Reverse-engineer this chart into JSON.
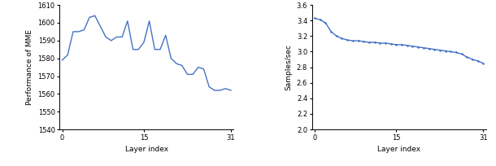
{
  "left": {
    "x": [
      0,
      1,
      2,
      3,
      4,
      5,
      6,
      7,
      8,
      9,
      10,
      11,
      12,
      13,
      14,
      15,
      16,
      17,
      18,
      19,
      20,
      21,
      22,
      23,
      24,
      25,
      26,
      27,
      28,
      29,
      30,
      31
    ],
    "y": [
      1579,
      1582,
      1595,
      1595,
      1596,
      1603,
      1604,
      1598,
      1592,
      1590,
      1592,
      1592,
      1601,
      1585,
      1585,
      1589,
      1601,
      1585,
      1585,
      1593,
      1580,
      1577,
      1576,
      1571,
      1571,
      1575,
      1574,
      1564,
      1562,
      1562,
      1563,
      1562
    ],
    "xlabel": "Layer index",
    "ylabel": "Performance of MME",
    "ylim": [
      1540,
      1610
    ],
    "yticks": [
      1540,
      1550,
      1560,
      1570,
      1580,
      1590,
      1600,
      1610
    ],
    "xticks": [
      0,
      15,
      31
    ],
    "line_color": "#4472c4"
  },
  "right": {
    "x": [
      0,
      1,
      2,
      3,
      4,
      5,
      6,
      7,
      8,
      9,
      10,
      11,
      12,
      13,
      14,
      15,
      16,
      17,
      18,
      19,
      20,
      21,
      22,
      23,
      24,
      25,
      26,
      27,
      28,
      29,
      30,
      31
    ],
    "y": [
      3.43,
      3.41,
      3.37,
      3.26,
      3.2,
      3.17,
      3.15,
      3.14,
      3.14,
      3.13,
      3.12,
      3.12,
      3.11,
      3.11,
      3.1,
      3.09,
      3.09,
      3.08,
      3.07,
      3.06,
      3.05,
      3.04,
      3.03,
      3.02,
      3.01,
      3.0,
      2.99,
      2.97,
      2.93,
      2.9,
      2.88,
      2.85
    ],
    "xlabel": "Layer index",
    "ylabel": "Samples/sec",
    "ylim": [
      2.0,
      3.6
    ],
    "yticks": [
      2.0,
      2.2,
      2.4,
      2.6,
      2.8,
      3.0,
      3.2,
      3.4,
      3.6
    ],
    "xticks": [
      0,
      15,
      31
    ],
    "line_color": "#4472c4",
    "marker": "."
  },
  "fig_width": 6.1,
  "fig_height": 2.04,
  "dpi": 100
}
